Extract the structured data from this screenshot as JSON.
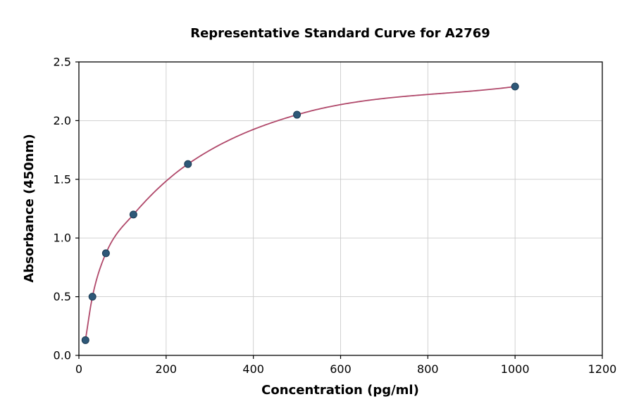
{
  "chart_data": {
    "type": "scatter",
    "title": "Representative Standard Curve for A2769",
    "xlabel": "Concentration (pg/ml)",
    "ylabel": "Absorbance (450nm)",
    "xlim": [
      0,
      1200
    ],
    "ylim": [
      0,
      2.5
    ],
    "x_ticks": [
      0,
      200,
      400,
      600,
      800,
      1000,
      1200
    ],
    "y_ticks": [
      0.0,
      0.5,
      1.0,
      1.5,
      2.0,
      2.5
    ],
    "grid": true,
    "legend": "none",
    "points": [
      {
        "x": 15,
        "y": 0.13
      },
      {
        "x": 31,
        "y": 0.5
      },
      {
        "x": 62,
        "y": 0.87
      },
      {
        "x": 125,
        "y": 1.2
      },
      {
        "x": 250,
        "y": 1.63
      },
      {
        "x": 500,
        "y": 2.05
      },
      {
        "x": 1000,
        "y": 2.29
      }
    ],
    "fit_curve": {
      "name": "standard-curve-fit",
      "style": "smooth-through-points",
      "x_start": 15,
      "x_end": 1000
    },
    "colors": {
      "curve": "#b0486a",
      "marker": "#2e5878",
      "marker_edge": "#1c3c55",
      "grid": "#cccccc",
      "axis": "#000000"
    }
  }
}
